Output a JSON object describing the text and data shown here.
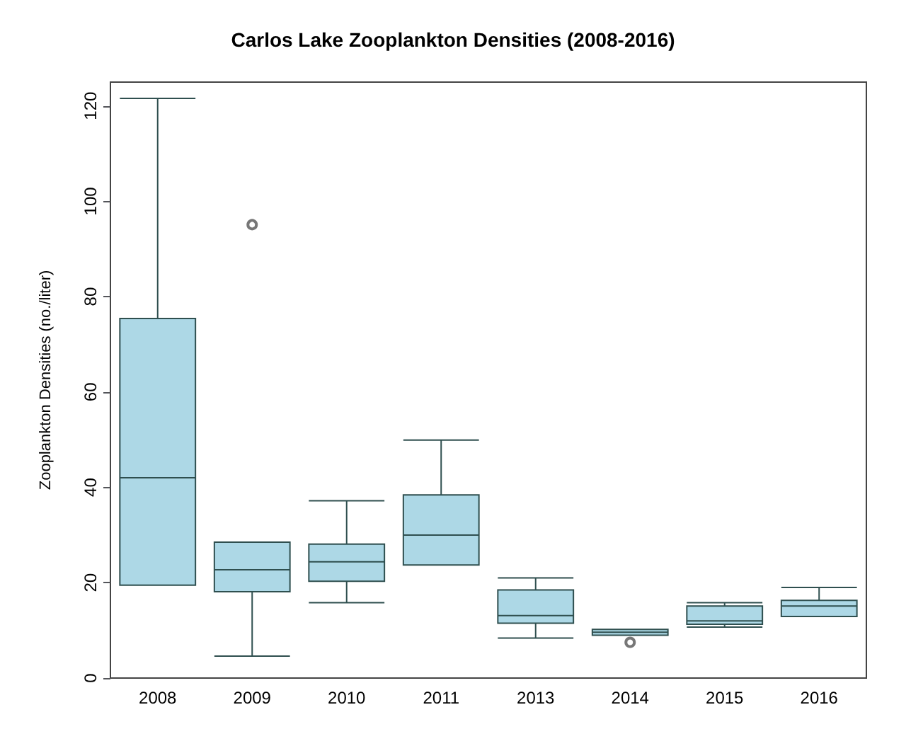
{
  "chart_data": {
    "type": "box",
    "title": "Carlos Lake Zooplankton Densities (2008-2016)",
    "ylabel": "Zooplankton Densities (no./liter)",
    "categories": [
      "2008",
      "2009",
      "2010",
      "2011",
      "2013",
      "2014",
      "2015",
      "2016"
    ],
    "color": "#add8e6",
    "boxes": [
      {
        "low": 19.5,
        "q1": 19.5,
        "median": 42,
        "q3": 75.4,
        "high": 121.6
      },
      {
        "low": 4.6,
        "q1": 18.1,
        "median": 22.7,
        "q3": 28.5,
        "high": 28.5,
        "outliers": [
          95.1
        ]
      },
      {
        "low": 15.8,
        "q1": 20.3,
        "median": 24.4,
        "q3": 28.1,
        "high": 37.2
      },
      {
        "low": 23.7,
        "q1": 23.7,
        "median": 30,
        "q3": 38.4,
        "high": 49.9
      },
      {
        "low": 8.4,
        "q1": 11.5,
        "median": 13.1,
        "q3": 18.5,
        "high": 21
      },
      {
        "low": 9.0,
        "q1": 9.0,
        "median": 9.6,
        "q3": 10.2,
        "high": 10.2,
        "outliers": [
          7.5
        ]
      },
      {
        "low": 10.7,
        "q1": 11.3,
        "median": 12,
        "q3": 15.1,
        "high": 15.8
      },
      {
        "low": 12.9,
        "q1": 12.9,
        "median": 15.1,
        "q3": 16.3,
        "high": 19
      }
    ],
    "ylim": [
      0,
      125
    ],
    "yticks": [
      0,
      20,
      40,
      60,
      80,
      100,
      120
    ],
    "grid": false
  }
}
